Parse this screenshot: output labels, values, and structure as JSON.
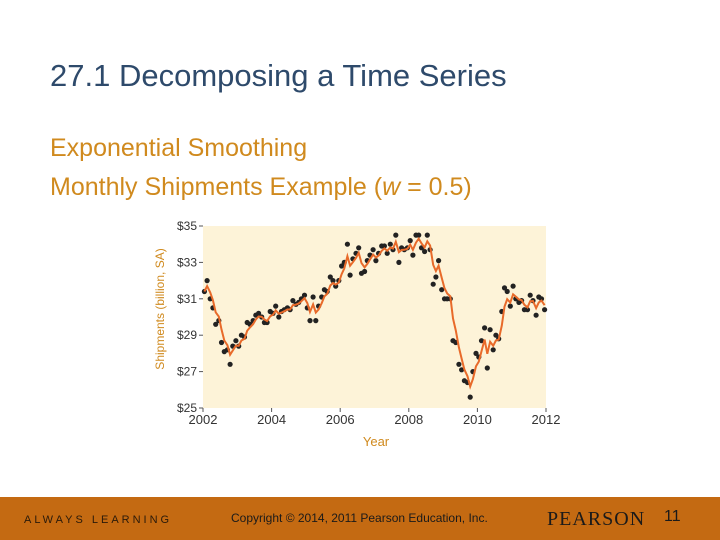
{
  "slide": {
    "title": "27.1 Decomposing a Time Series",
    "subtitle_line1": "Exponential Smoothing",
    "subtitle_line2_a": "Monthly Shipments Example (",
    "subtitle_line2_w": "w",
    "subtitle_line2_b": " = 0.5)"
  },
  "footer": {
    "left_text": "ALWAYS LEARNING",
    "copyright": "Copyright © 2014, 2011 Pearson Education, Inc.",
    "brand": "PEARSON",
    "page_number": "11"
  },
  "colors": {
    "title": "#2e4a6b",
    "subtitle": "#d08a1e",
    "plot_background": "#fdf3d8",
    "smoothed_line": "#e86a2a",
    "observed_points": "#222222",
    "axis_text": "#d08a1e",
    "footer_bar": "#c46a12"
  },
  "chart_data": {
    "type": "scatter",
    "xlabel": "Year",
    "ylabel": "Shipments (billion, SA)",
    "xlim": [
      2002,
      2012
    ],
    "ylim": [
      25,
      35
    ],
    "x_ticks": [
      "2002",
      "2004",
      "2006",
      "2008",
      "2010",
      "2012"
    ],
    "y_ticks": [
      "$25",
      "$27",
      "$29",
      "$31",
      "$33",
      "$35"
    ],
    "grid": false,
    "legend": "none",
    "series": [
      {
        "type": "scatter",
        "x": [
          2002.04,
          2002.12,
          2002.21,
          2002.29,
          2002.37,
          2002.46,
          2002.54,
          2002.62,
          2002.71,
          2002.79,
          2002.87,
          2002.96,
          2003.04,
          2003.12,
          2003.21,
          2003.29,
          2003.37,
          2003.46,
          2003.54,
          2003.62,
          2003.71,
          2003.79,
          2003.87,
          2003.96,
          2004.04,
          2004.12,
          2004.21,
          2004.29,
          2004.37,
          2004.46,
          2004.54,
          2004.62,
          2004.71,
          2004.79,
          2004.87,
          2004.96,
          2005.04,
          2005.12,
          2005.21,
          2005.29,
          2005.37,
          2005.46,
          2005.54,
          2005.62,
          2005.71,
          2005.79,
          2005.87,
          2005.96,
          2006.04,
          2006.12,
          2006.21,
          2006.29,
          2006.37,
          2006.46,
          2006.54,
          2006.62,
          2006.71,
          2006.79,
          2006.87,
          2006.96,
          2007.04,
          2007.12,
          2007.21,
          2007.29,
          2007.37,
          2007.46,
          2007.54,
          2007.62,
          2007.71,
          2007.79,
          2007.87,
          2007.96,
          2008.04,
          2008.12,
          2008.21,
          2008.29,
          2008.37,
          2008.46,
          2008.54,
          2008.62,
          2008.71,
          2008.79,
          2008.87,
          2008.96,
          2009.04,
          2009.12,
          2009.21,
          2009.29,
          2009.37,
          2009.46,
          2009.54,
          2009.62,
          2009.71,
          2009.79,
          2009.87,
          2009.96,
          2010.04,
          2010.12,
          2010.21,
          2010.29,
          2010.37,
          2010.46,
          2010.54,
          2010.62,
          2010.71,
          2010.79,
          2010.87,
          2010.96,
          2011.04,
          2011.12,
          2011.21,
          2011.29,
          2011.37,
          2011.46,
          2011.54,
          2011.62,
          2011.71,
          2011.79,
          2011.87,
          2011.96
        ],
        "y": [
          31.4,
          32.0,
          31.0,
          30.5,
          29.6,
          29.8,
          28.6,
          28.1,
          28.2,
          27.4,
          28.4,
          28.7,
          28.4,
          29.0,
          28.9,
          29.7,
          29.6,
          29.8,
          30.1,
          30.2,
          30.0,
          29.7,
          29.7,
          30.3,
          30.2,
          30.6,
          30.0,
          30.3,
          30.4,
          30.5,
          30.4,
          30.9,
          30.7,
          30.8,
          31.0,
          31.2,
          30.5,
          29.8,
          31.1,
          29.8,
          30.6,
          31.1,
          31.5,
          31.4,
          32.2,
          32.0,
          31.7,
          32.0,
          32.8,
          33.0,
          34.0,
          32.3,
          33.2,
          33.5,
          33.8,
          32.4,
          32.5,
          33.1,
          33.4,
          33.7,
          33.1,
          33.5,
          33.9,
          33.9,
          33.5,
          34.0,
          33.7,
          34.5,
          33.0,
          33.8,
          33.7,
          33.8,
          34.2,
          33.4,
          34.5,
          34.5,
          33.8,
          33.6,
          34.5,
          33.7,
          31.8,
          32.2,
          33.1,
          31.5,
          31.0,
          31.0,
          31.0,
          28.7,
          28.6,
          27.4,
          27.1,
          26.5,
          26.4,
          25.6,
          27.0,
          28.0,
          27.8,
          28.7,
          29.4,
          27.2,
          29.3,
          28.2,
          29.0,
          28.8,
          30.3,
          31.6,
          31.4,
          30.6,
          31.7,
          31.0,
          30.8,
          30.9,
          30.4,
          30.4,
          31.2,
          30.9,
          30.1,
          31.1,
          31.0,
          30.4
        ]
      },
      {
        "type": "line",
        "x": [
          2002.04,
          2002.12,
          2002.21,
          2002.29,
          2002.37,
          2002.46,
          2002.54,
          2002.62,
          2002.71,
          2002.79,
          2002.87,
          2002.96,
          2003.04,
          2003.12,
          2003.21,
          2003.29,
          2003.37,
          2003.46,
          2003.54,
          2003.62,
          2003.71,
          2003.79,
          2003.87,
          2003.96,
          2004.04,
          2004.12,
          2004.21,
          2004.29,
          2004.37,
          2004.46,
          2004.54,
          2004.62,
          2004.71,
          2004.79,
          2004.87,
          2004.96,
          2005.04,
          2005.12,
          2005.21,
          2005.29,
          2005.37,
          2005.46,
          2005.54,
          2005.62,
          2005.71,
          2005.79,
          2005.87,
          2005.96,
          2006.04,
          2006.12,
          2006.21,
          2006.29,
          2006.37,
          2006.46,
          2006.54,
          2006.62,
          2006.71,
          2006.79,
          2006.87,
          2006.96,
          2007.04,
          2007.12,
          2007.21,
          2007.29,
          2007.37,
          2007.46,
          2007.54,
          2007.62,
          2007.71,
          2007.79,
          2007.87,
          2007.96,
          2008.04,
          2008.12,
          2008.21,
          2008.29,
          2008.37,
          2008.46,
          2008.54,
          2008.62,
          2008.71,
          2008.79,
          2008.87,
          2008.96,
          2009.04,
          2009.12,
          2009.21,
          2009.29,
          2009.37,
          2009.46,
          2009.54,
          2009.62,
          2009.71,
          2009.79,
          2009.87,
          2009.96,
          2010.04,
          2010.12,
          2010.21,
          2010.29,
          2010.37,
          2010.46,
          2010.54,
          2010.62,
          2010.71,
          2010.79,
          2010.87,
          2010.96,
          2011.04,
          2011.12,
          2011.21,
          2011.29,
          2011.37,
          2011.46,
          2011.54,
          2011.62,
          2011.71,
          2011.79,
          2011.87,
          2011.96
        ],
        "y": [
          31.4,
          31.7,
          31.35,
          30.93,
          30.26,
          30.03,
          29.32,
          28.71,
          28.45,
          27.93,
          28.16,
          28.43,
          28.42,
          28.71,
          28.8,
          29.25,
          29.43,
          29.61,
          29.86,
          30.03,
          30.01,
          29.86,
          29.78,
          30.04,
          30.12,
          30.36,
          30.18,
          30.24,
          30.32,
          30.41,
          30.41,
          30.65,
          30.68,
          30.74,
          30.87,
          31.04,
          30.77,
          30.28,
          30.69,
          30.25,
          30.42,
          30.76,
          31.13,
          31.27,
          31.73,
          31.87,
          31.78,
          31.89,
          32.35,
          32.67,
          33.34,
          32.82,
          33.01,
          33.25,
          33.53,
          32.96,
          32.73,
          32.92,
          33.16,
          33.43,
          33.27,
          33.38,
          33.64,
          33.77,
          33.64,
          33.82,
          33.76,
          34.13,
          33.56,
          33.68,
          33.69,
          33.75,
          33.97,
          33.69,
          34.09,
          34.3,
          34.05,
          33.82,
          34.16,
          33.93,
          32.86,
          32.53,
          32.82,
          32.16,
          31.58,
          31.29,
          31.14,
          29.92,
          29.26,
          28.33,
          27.72,
          27.11,
          26.75,
          26.18,
          26.59,
          27.29,
          27.55,
          28.12,
          28.76,
          27.98,
          28.64,
          28.42,
          28.71,
          28.76,
          29.53,
          30.57,
          30.98,
          30.79,
          31.25,
          31.12,
          30.96,
          30.93,
          30.67,
          30.53,
          30.87,
          30.88,
          30.49,
          30.8,
          30.9,
          30.65
        ]
      }
    ]
  }
}
